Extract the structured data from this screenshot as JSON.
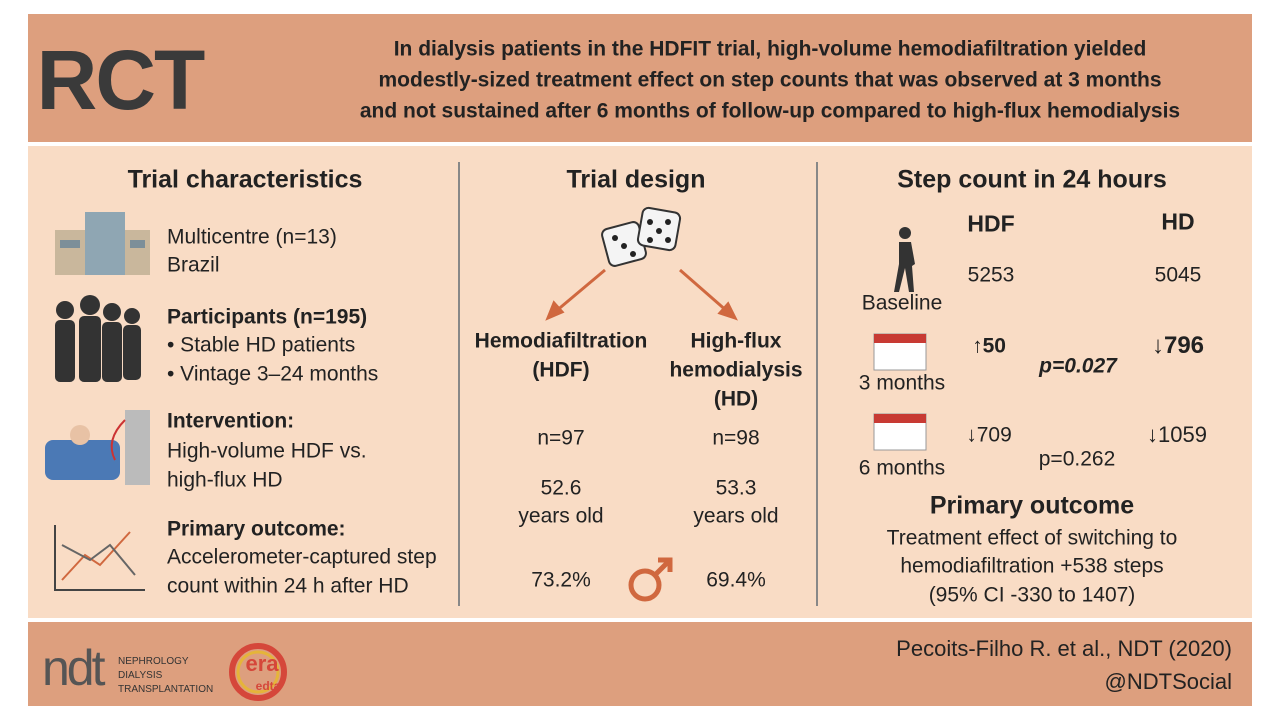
{
  "header": {
    "label": "RCT",
    "title_lines": [
      "In dialysis patients in the HDFIT trial, high-volume hemodiafiltration yielded",
      "modestly-sized treatment effect on step counts that was observed at 3 months",
      "and not sustained after 6 months of follow-up compared to high-flux hemodialysis"
    ]
  },
  "characteristics": {
    "title": "Trial characteristics",
    "items": [
      {
        "lines": [
          "Multicentre (n=13)",
          "Brazil"
        ]
      },
      {
        "heading": "Participants (n=195)",
        "lines": [
          "• Stable HD patients",
          "• Vintage 3–24 months"
        ]
      },
      {
        "heading": "Intervention:",
        "lines": [
          "High-volume HDF vs.",
          "high-flux HD"
        ]
      },
      {
        "heading": "Primary outcome:",
        "lines": [
          "Accelerometer-captured step",
          "count within 24 h after HD"
        ]
      }
    ]
  },
  "design": {
    "title": "Trial design",
    "arms": [
      {
        "name_lines": [
          "Hemodiafiltration",
          "(HDF)"
        ],
        "n": "n=97",
        "age": "52.6",
        "age_unit": "years old",
        "male": "73.2%"
      },
      {
        "name_lines": [
          "High-flux",
          "hemodialysis",
          "(HD)"
        ],
        "n": "n=98",
        "age": "53.3",
        "age_unit": "years old",
        "male": "69.4%"
      }
    ]
  },
  "steps": {
    "title": "Step count in 24 hours",
    "columns": [
      "HDF",
      "HD"
    ],
    "rows": [
      {
        "label": "Baseline",
        "hdf": "5253",
        "hd": "5045"
      },
      {
        "label": "3 months",
        "hdf": "↑50",
        "hd": "↓796",
        "p": "p=0.027"
      },
      {
        "label": "6 months",
        "hdf": "↓709",
        "hd": "↓1059",
        "p": "p=0.262"
      }
    ],
    "primary": {
      "title": "Primary outcome",
      "lines": [
        "Treatment effect of switching to",
        "hemodiafiltration +538 steps",
        "(95% CI -330 to 1407)"
      ]
    }
  },
  "footer": {
    "journal_logo": "ndt",
    "journal_lines": [
      "NEPHROLOGY",
      "DIALYSIS",
      "TRANSPLANTATION"
    ],
    "society_logo": [
      "era",
      "edta"
    ],
    "citation": "Pecoits-Filho R. et al., NDT (2020)",
    "handle": "@NDTSocial"
  }
}
